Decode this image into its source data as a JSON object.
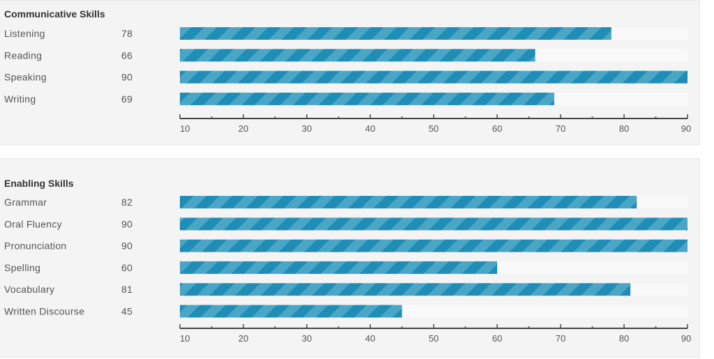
{
  "colors": {
    "bar": "#1f8db5",
    "stripe": "#4aa6c6",
    "track": "#f9f9f9",
    "axis": "#444444"
  },
  "chart_data": [
    {
      "type": "bar",
      "orientation": "horizontal",
      "title": "Communicative Skills",
      "categories": [
        "Listening",
        "Reading",
        "Speaking",
        "Writing"
      ],
      "values": [
        78,
        66,
        90,
        69
      ],
      "xlim": [
        10,
        90
      ],
      "ticks": [
        10,
        20,
        30,
        40,
        50,
        60,
        70,
        80,
        90
      ]
    },
    {
      "type": "bar",
      "orientation": "horizontal",
      "title": "Enabling Skills",
      "categories": [
        "Grammar",
        "Oral Fluency",
        "Pronunciation",
        "Spelling",
        "Vocabulary",
        "Written Discourse"
      ],
      "values": [
        82,
        90,
        90,
        60,
        81,
        45
      ],
      "xlim": [
        10,
        90
      ],
      "ticks": [
        10,
        20,
        30,
        40,
        50,
        60,
        70,
        80,
        90
      ]
    }
  ]
}
